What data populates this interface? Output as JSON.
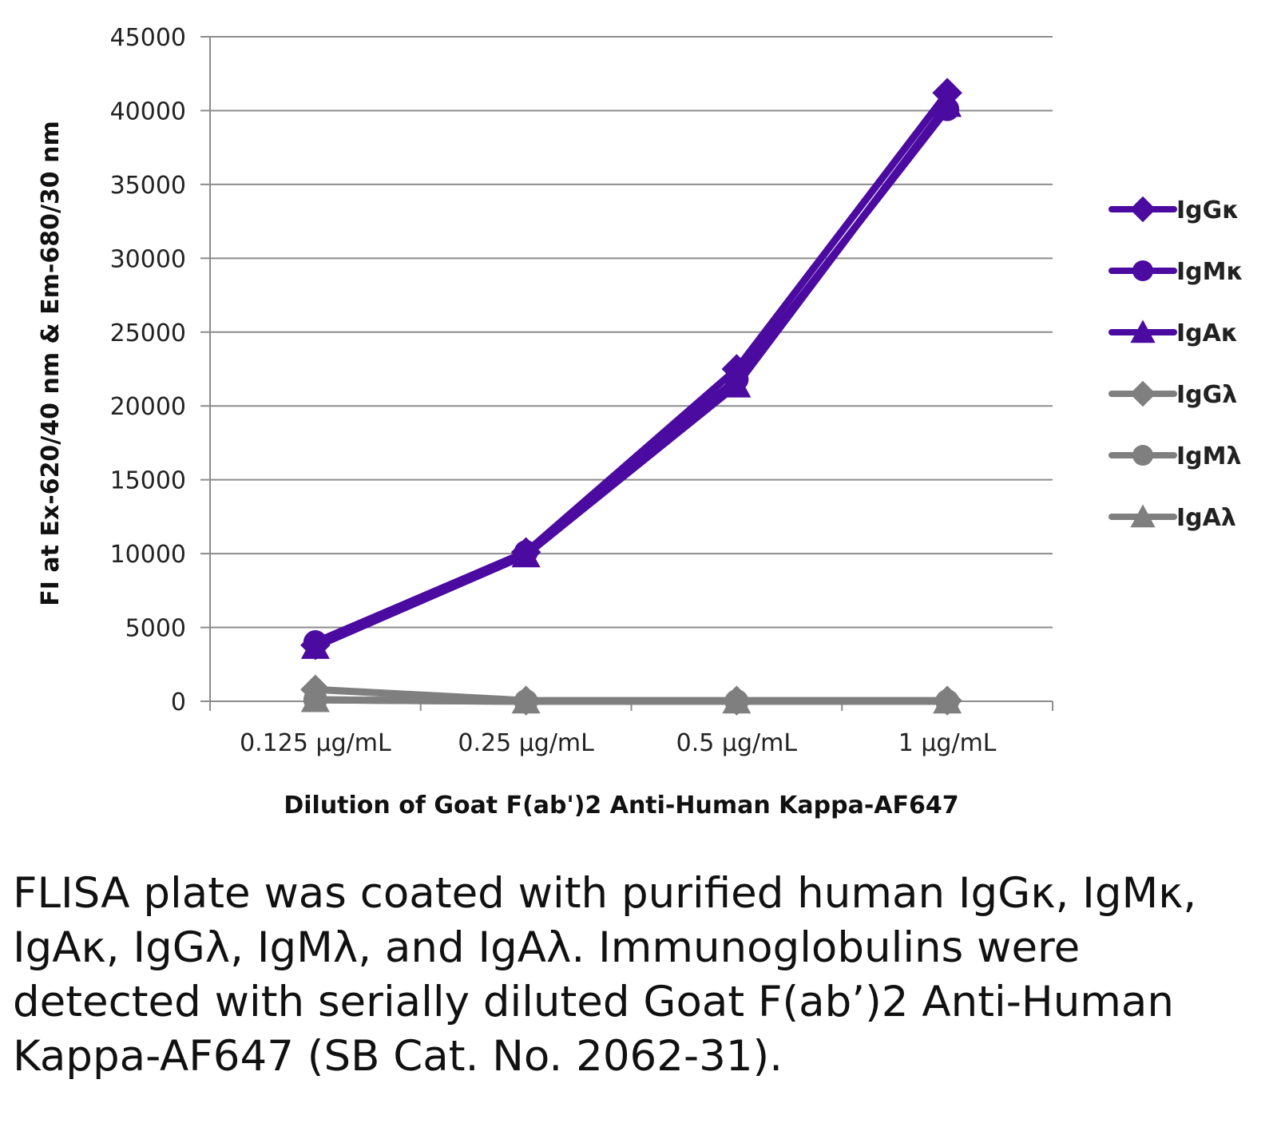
{
  "chart_data": {
    "type": "line",
    "categories": [
      "0.125 µg/mL",
      "0.25 µg/mL",
      "0.5 µg/mL",
      "1 µg/mL"
    ],
    "series": [
      {
        "name": "IgGκ",
        "values": [
          3800,
          10100,
          22500,
          41200
        ],
        "color": "#4b0aa0",
        "marker": "diamond"
      },
      {
        "name": "IgMκ",
        "values": [
          4000,
          10100,
          21800,
          40100
        ],
        "color": "#4b0aa0",
        "marker": "circle"
      },
      {
        "name": "IgAκ",
        "values": [
          3700,
          9900,
          21400,
          40400
        ],
        "color": "#4b0aa0",
        "marker": "triangle"
      },
      {
        "name": "IgGλ",
        "values": [
          800,
          50,
          50,
          50
        ],
        "color": "#7f7f7f",
        "marker": "diamond"
      },
      {
        "name": "IgMλ",
        "values": [
          100,
          0,
          0,
          0
        ],
        "color": "#7f7f7f",
        "marker": "circle"
      },
      {
        "name": "IgAλ",
        "values": [
          100,
          0,
          0,
          0
        ],
        "color": "#7f7f7f",
        "marker": "triangle"
      }
    ],
    "xlabel": "Dilution of Goat F(ab')2 Anti-Human Kappa-AF647",
    "ylabel": "FI at Ex-620/40 nm & Em-680/30 nm",
    "ylim": [
      0,
      45000
    ],
    "yticks": [
      0,
      5000,
      10000,
      15000,
      20000,
      25000,
      30000,
      35000,
      40000,
      45000
    ],
    "grid": true,
    "legend_position": "right"
  },
  "caption": "FLISA plate was coated with purified human IgGκ, IgMκ, IgAκ, IgGλ, IgMλ, and IgAλ. Immunoglobulins were detected with serially diluted Goat F(ab’)2 Anti-Human Kappa-AF647 (SB Cat. No. 2062-31)."
}
